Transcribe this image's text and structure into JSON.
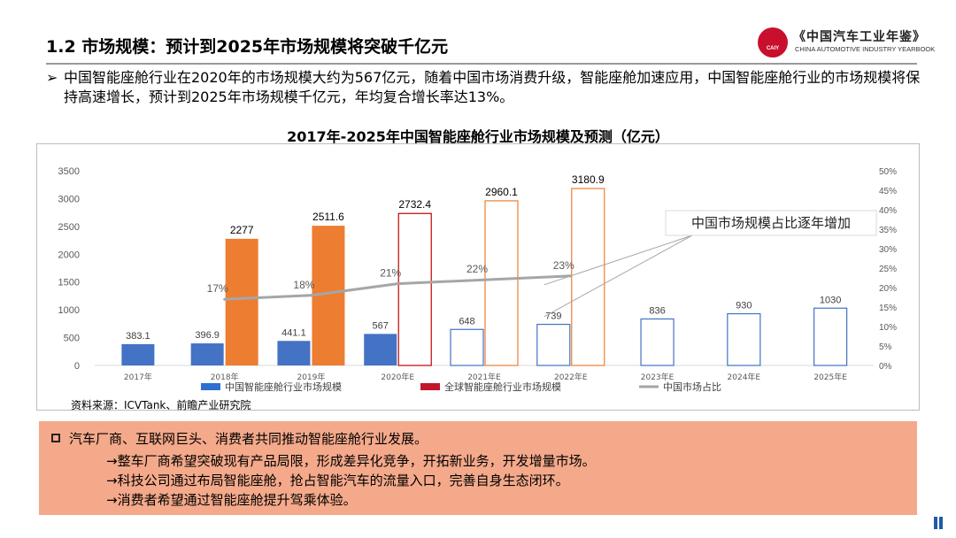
{
  "header": {
    "title": "1.2 市场规模：预计到2025年市场规模将突破千亿元",
    "logo_text": "《中国汽车工业年鉴》",
    "logo_en": "CHINA AUTOMOTIVE INDUSTRY YEARBOOK",
    "logo_badge": "CAIY"
  },
  "intro": {
    "arrow": "➢",
    "text": "中国智能座舱行业在2020年的市场规模大约为567亿元，随着中国市场消费升级，智能座舱加速应用，中国智能座舱行业的市场规模将保持高速增长，预计到2025年市场规模千亿元，年均复合增长率达13%。"
  },
  "chart_title": "2017年-2025年中国智能座舱行业市场规模及预测（亿元）",
  "chart_data": {
    "type": "bar",
    "categories": [
      "2017年",
      "2018年",
      "2019年",
      "2020年E",
      "2021年E",
      "2022年E",
      "2023年E",
      "2024年E",
      "2025年E"
    ],
    "series": [
      {
        "name": "中国智能座舱行业市场规模",
        "values": [
          383.1,
          396.9,
          441.1,
          567,
          648,
          739,
          836,
          930,
          1030
        ],
        "labels": [
          "383.1",
          "396.9",
          "441.1",
          "567",
          "648",
          "739",
          "836",
          "930",
          "1030"
        ],
        "color": "#4472c4"
      },
      {
        "name": "全球智能座舱行业市场规模",
        "values": [
          null,
          2277,
          2511.6,
          2732.4,
          2960.1,
          3180.9,
          null,
          null,
          null
        ],
        "labels": [
          "",
          "2277",
          "2511.6",
          "2732.4",
          "2960.1",
          "3180.9",
          "",
          "",
          ""
        ],
        "color": "#ed7d31"
      },
      {
        "name": "中国市场占比",
        "type": "line",
        "axis": "right",
        "values": [
          null,
          17,
          18,
          21,
          22,
          23,
          null,
          null,
          null
        ],
        "labels": [
          "",
          "17%",
          "18%",
          "21%",
          "22%",
          "23%",
          "",
          "",
          ""
        ],
        "color": "#a6a6a6"
      }
    ],
    "left_axis": {
      "ylim": [
        0,
        3500
      ],
      "ticks": [
        "0",
        "500",
        "1000",
        "1500",
        "2000",
        "2500",
        "3000",
        "3500"
      ]
    },
    "right_axis": {
      "ylim": [
        0,
        50
      ],
      "ticks": [
        "0%",
        "5%",
        "10%",
        "15%",
        "20%",
        "25%",
        "30%",
        "35%",
        "40%",
        "45%",
        "50%"
      ]
    },
    "annotation": "中国市场规模占比逐年增加",
    "legend_position": "bottom",
    "grid": false
  },
  "source": "资料来源：ICVTank、前瞻产业研究院",
  "panel": {
    "lines": [
      "汽车厂商、互联网巨头、消费者共同推动智能座舱行业发展。",
      "→整车厂商希望突破现有产品局限，形成差异化竞争，开拓新业务，开发增量市场。",
      "→科技公司通过布局智能座舱，抢占智能汽车的流量入口，完善自身生态闭环。",
      "→消费者希望通过智能座舱提升驾乘体验。"
    ]
  }
}
